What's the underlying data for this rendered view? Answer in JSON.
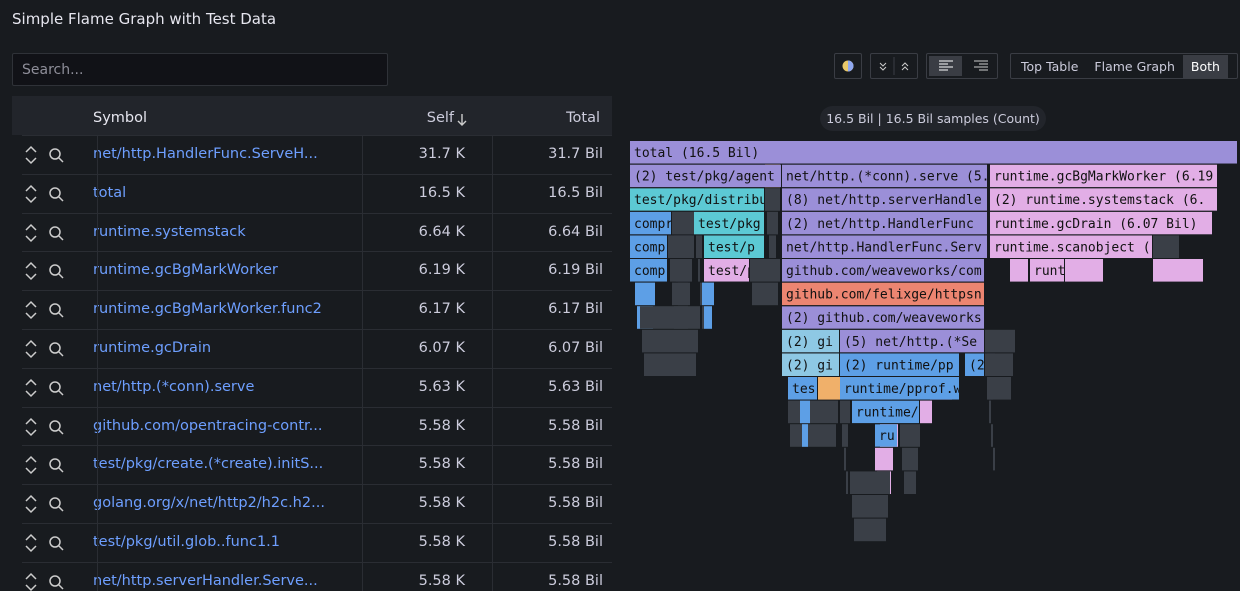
{
  "header": {
    "title": "Simple Flame Graph with Test Data"
  },
  "search": {
    "placeholder": "Search..."
  },
  "view_buttons": [
    "Top Table",
    "Flame Graph",
    "Both"
  ],
  "table": {
    "columns": [
      "Symbol",
      "Self",
      "Total"
    ],
    "rows": [
      [
        "net/http.HandlerFunc.ServeH...",
        "31.7 K",
        "31.7 Bil"
      ],
      [
        "total",
        "16.5 K",
        "16.5 Bil"
      ],
      [
        "runtime.systemstack",
        "6.64 K",
        "6.64 Bil"
      ],
      [
        "runtime.gcBgMarkWorker",
        "6.19 K",
        "6.19 Bil"
      ],
      [
        "runtime.gcBgMarkWorker.func2",
        "6.17 K",
        "6.17 Bil"
      ],
      [
        "runtime.gcDrain",
        "6.07 K",
        "6.07 Bil"
      ],
      [
        "net/http.(*conn).serve",
        "5.63 K",
        "5.63 Bil"
      ],
      [
        "github.com/opentracing-contr...",
        "5.58 K",
        "5.58 Bil"
      ],
      [
        "test/pkg/create.(*create).initS...",
        "5.58 K",
        "5.58 Bil"
      ],
      [
        "golang.org/x/net/http2/h2c.h2...",
        "5.58 K",
        "5.58 Bil"
      ],
      [
        "test/pkg/util.glob..func1.1",
        "5.58 K",
        "5.58 Bil"
      ],
      [
        "net/http.serverHandler.Serve...",
        "5.58 K",
        "5.58 Bil"
      ]
    ]
  },
  "flame_graph": {
    "summary": "16.5 Bil | 16.5 Bil samples (Count)",
    "blocks": [
      {
        "label": "total (16.5 Bil)"
      },
      {
        "label": "(2) test/pkg/agent"
      },
      {
        "label": "net/http.(*conn).serve (5."
      },
      {
        "label": "runtime.gcBgMarkWorker (6.19"
      },
      {
        "label": "test/pkg/distribu"
      },
      {
        "label": "(8) net/http.serverHandle"
      },
      {
        "label": "(2) runtime.systemstack (6."
      },
      {
        "label": "compr"
      },
      {
        "label": "test/pkg"
      },
      {
        "label": "(2) net/http.HandlerFunc"
      },
      {
        "label": "runtime.gcDrain (6.07 Bil)"
      },
      {
        "label": "comp"
      },
      {
        "label": "test/p"
      },
      {
        "label": "net/http.HandlerFunc.Serv"
      },
      {
        "label": "runtime.scanobject ("
      },
      {
        "label": "comp"
      },
      {
        "label": "test/p"
      },
      {
        "label": "github.com/weaveworks/com"
      },
      {
        "label": "runt"
      },
      {
        "label": "github.com/felixge/httpsn"
      },
      {
        "label": "(2) github.com/weaveworks"
      },
      {
        "label": "(2) gi"
      },
      {
        "label": "(5) net/http.(*Se"
      },
      {
        "label": "(2) gi"
      },
      {
        "label": "(2) runtime/pp"
      },
      {
        "label": "(2"
      },
      {
        "label": "tes"
      },
      {
        "label": "runtime/pprof.w"
      },
      {
        "label": "runtime/"
      },
      {
        "label": "ru"
      }
    ]
  }
}
